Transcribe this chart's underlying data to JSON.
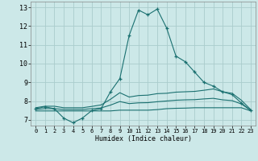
{
  "xlabel": "Humidex (Indice chaleur)",
  "xlim": [
    -0.5,
    23.5
  ],
  "ylim": [
    6.7,
    13.3
  ],
  "yticks": [
    7,
    8,
    9,
    10,
    11,
    12,
    13
  ],
  "xticks": [
    0,
    1,
    2,
    3,
    4,
    5,
    6,
    7,
    8,
    9,
    10,
    11,
    12,
    13,
    14,
    15,
    16,
    17,
    18,
    19,
    20,
    21,
    22,
    23
  ],
  "bg_color": "#cce8e8",
  "grid_color": "#aacccc",
  "line_color": "#1a7070",
  "series_main": {
    "x": [
      0,
      1,
      2,
      3,
      4,
      5,
      6,
      7,
      8,
      9,
      10,
      11,
      12,
      13,
      14,
      15,
      16,
      17,
      18,
      19,
      20,
      21,
      22,
      23
    ],
    "y": [
      7.6,
      7.7,
      7.6,
      7.1,
      6.85,
      7.1,
      7.5,
      7.6,
      8.5,
      9.2,
      11.5,
      12.85,
      12.6,
      12.9,
      11.9,
      10.4,
      10.1,
      9.55,
      9.0,
      8.8,
      8.5,
      8.35,
      7.9,
      7.5
    ]
  },
  "series_upper": {
    "x": [
      0,
      1,
      2,
      3,
      4,
      5,
      6,
      7,
      8,
      9,
      10,
      11,
      12,
      13,
      14,
      15,
      16,
      17,
      18,
      19,
      20,
      21,
      22,
      23
    ],
    "y": [
      7.65,
      7.73,
      7.73,
      7.65,
      7.65,
      7.65,
      7.72,
      7.8,
      8.1,
      8.45,
      8.22,
      8.3,
      8.32,
      8.4,
      8.42,
      8.48,
      8.5,
      8.52,
      8.58,
      8.65,
      8.5,
      8.42,
      8.05,
      7.55
    ],
    "has_marker": false
  },
  "series_lower": {
    "x": [
      0,
      1,
      2,
      3,
      4,
      5,
      6,
      7,
      8,
      9,
      10,
      11,
      12,
      13,
      14,
      15,
      16,
      17,
      18,
      19,
      20,
      21,
      22,
      23
    ],
    "y": [
      7.48,
      7.48,
      7.48,
      7.48,
      7.48,
      7.48,
      7.48,
      7.48,
      7.48,
      7.52,
      7.52,
      7.52,
      7.52,
      7.55,
      7.6,
      7.62,
      7.63,
      7.65,
      7.65,
      7.65,
      7.65,
      7.65,
      7.65,
      7.48
    ],
    "has_marker": false
  },
  "series_mid": {
    "x": [
      0,
      1,
      2,
      3,
      4,
      5,
      6,
      7,
      8,
      9,
      10,
      11,
      12,
      13,
      14,
      15,
      16,
      17,
      18,
      19,
      20,
      21,
      22,
      23
    ],
    "y": [
      7.56,
      7.6,
      7.6,
      7.56,
      7.56,
      7.56,
      7.6,
      7.64,
      7.79,
      7.98,
      7.87,
      7.91,
      7.92,
      7.97,
      8.01,
      8.05,
      8.07,
      8.08,
      8.12,
      8.15,
      8.07,
      8.03,
      7.85,
      7.51
    ],
    "has_marker": false
  }
}
